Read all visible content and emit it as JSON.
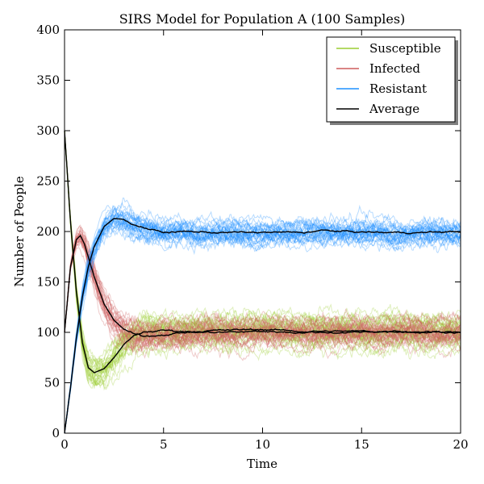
{
  "chart_data": {
    "type": "line",
    "title": "SIRS Model for Population A (100 Samples)",
    "xlabel": "Time",
    "ylabel": "Number of People",
    "xlim": [
      0,
      20
    ],
    "ylim": [
      0,
      400
    ],
    "xticks": [
      0,
      5,
      10,
      15,
      20
    ],
    "yticks": [
      0,
      50,
      100,
      150,
      200,
      250,
      300,
      350,
      400
    ],
    "grid": false,
    "legend_position": "top-right",
    "samples": 100,
    "colors": {
      "Susceptible": "#9acd32",
      "Infected": "#cd5c5c",
      "Resistant": "#1e90ff",
      "Average": "#000000"
    },
    "legend": [
      "Susceptible",
      "Infected",
      "Resistant",
      "Average"
    ],
    "series": [
      {
        "name": "Susceptible",
        "x": [
          0,
          0.3,
          0.6,
          0.9,
          1.2,
          1.5,
          2.0,
          2.5,
          3.0,
          3.5,
          4.0,
          5.0,
          6.0,
          8.0,
          10.0,
          12.0,
          14.0,
          16.0,
          18.0,
          20.0
        ],
        "values": [
          300,
          210,
          140,
          90,
          65,
          60,
          64,
          75,
          88,
          96,
          100,
          102,
          101,
          102,
          103,
          101,
          101,
          101,
          101,
          100
        ],
        "spread": 15
      },
      {
        "name": "Infected",
        "x": [
          0,
          0.3,
          0.6,
          0.8,
          1.0,
          1.5,
          2.0,
          2.5,
          3.0,
          3.5,
          4.0,
          5.0,
          6.0,
          8.0,
          10.0,
          12.0,
          14.0,
          16.0,
          18.0,
          20.0
        ],
        "values": [
          100,
          165,
          192,
          196,
          188,
          155,
          128,
          112,
          103,
          98,
          96,
          98,
          100,
          100,
          101,
          100,
          100,
          101,
          100,
          100
        ],
        "spread": 14
      },
      {
        "name": "Resistant",
        "x": [
          0,
          0.3,
          0.6,
          0.9,
          1.2,
          1.5,
          2.0,
          2.5,
          3.0,
          3.5,
          4.0,
          5.0,
          6.0,
          8.0,
          10.0,
          12.0,
          13.0,
          14.0,
          16.0,
          18.0,
          20.0
        ],
        "values": [
          0,
          45,
          95,
          135,
          165,
          185,
          205,
          213,
          212,
          207,
          204,
          199,
          200,
          199,
          199,
          199,
          201,
          200,
          199,
          199,
          200
        ],
        "spread": 13
      }
    ]
  }
}
